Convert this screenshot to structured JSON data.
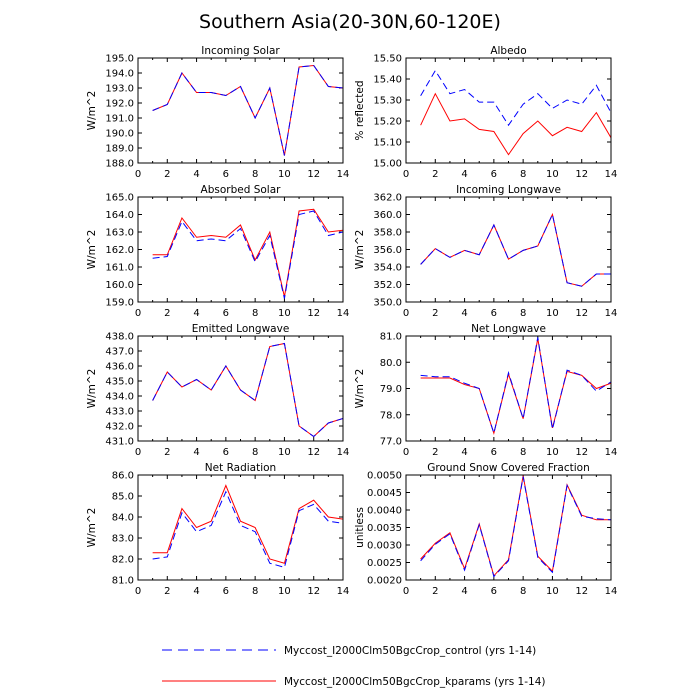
{
  "figure": {
    "title": "Southern Asia(20-30N,60-120E)"
  },
  "legend": {
    "entries": [
      {
        "label": "Myccost_I2000Clm50BgcCrop_control (yrs 1-14)",
        "color": "#0000ff",
        "dash": "dashed"
      },
      {
        "label": "Myccost_I2000Clm50BgcCrop_kparams (yrs 1-14)",
        "color": "#ff0000",
        "dash": "solid"
      }
    ]
  },
  "chart_data": [
    {
      "type": "line",
      "title": "Incoming Solar",
      "xlabel": "",
      "ylabel": "W/m^2",
      "xlim": [
        0,
        14
      ],
      "ylim": [
        188.0,
        195.0
      ],
      "xticks": [
        0,
        2,
        4,
        6,
        8,
        10,
        12,
        14
      ],
      "yticks": [
        188.0,
        189.0,
        190.0,
        191.0,
        192.0,
        193.0,
        194.0,
        195.0
      ],
      "ytick_labels": [
        "188.0",
        "189.0",
        "190.0",
        "191.0",
        "192.0",
        "193.0",
        "194.0",
        "195.0"
      ],
      "x": [
        1,
        2,
        3,
        4,
        5,
        6,
        7,
        8,
        9,
        10,
        11,
        12,
        13,
        14
      ],
      "series": [
        {
          "values": [
            191.5,
            191.9,
            194.0,
            192.7,
            192.7,
            192.5,
            193.1,
            191.0,
            193.0,
            188.5,
            194.4,
            194.5,
            193.1,
            193.0
          ]
        },
        {
          "values": [
            191.5,
            191.9,
            194.0,
            192.7,
            192.7,
            192.5,
            193.1,
            191.0,
            193.0,
            188.5,
            194.4,
            194.5,
            193.1,
            193.0
          ]
        }
      ]
    },
    {
      "type": "line",
      "title": "Albedo",
      "xlabel": "",
      "ylabel": "% reflected",
      "xlim": [
        0,
        14
      ],
      "ylim": [
        15.0,
        15.5
      ],
      "xticks": [
        0,
        2,
        4,
        6,
        8,
        10,
        12,
        14
      ],
      "yticks": [
        15.0,
        15.1,
        15.2,
        15.3,
        15.4,
        15.5
      ],
      "ytick_labels": [
        "15.00",
        "15.10",
        "15.20",
        "15.30",
        "15.40",
        "15.50"
      ],
      "x": [
        1,
        2,
        3,
        4,
        5,
        6,
        7,
        8,
        9,
        10,
        11,
        12,
        13,
        14
      ],
      "series": [
        {
          "values": [
            15.32,
            15.44,
            15.33,
            15.35,
            15.29,
            15.29,
            15.18,
            15.28,
            15.33,
            15.26,
            15.3,
            15.28,
            15.37,
            15.24
          ]
        },
        {
          "values": [
            15.18,
            15.33,
            15.2,
            15.21,
            15.16,
            15.15,
            15.04,
            15.14,
            15.2,
            15.13,
            15.17,
            15.15,
            15.24,
            15.12
          ]
        }
      ]
    },
    {
      "type": "line",
      "title": "Absorbed Solar",
      "xlabel": "",
      "ylabel": "W/m^2",
      "xlim": [
        0,
        14
      ],
      "ylim": [
        159.0,
        165.0
      ],
      "xticks": [
        0,
        2,
        4,
        6,
        8,
        10,
        12,
        14
      ],
      "yticks": [
        159.0,
        160.0,
        161.0,
        162.0,
        163.0,
        164.0,
        165.0
      ],
      "ytick_labels": [
        "159.0",
        "160.0",
        "161.0",
        "162.0",
        "163.0",
        "164.0",
        "165.0"
      ],
      "x": [
        1,
        2,
        3,
        4,
        5,
        6,
        7,
        8,
        9,
        10,
        11,
        12,
        13,
        14
      ],
      "series": [
        {
          "values": [
            161.5,
            161.6,
            163.6,
            162.5,
            162.6,
            162.5,
            163.2,
            161.3,
            162.8,
            159.2,
            164.0,
            164.2,
            162.8,
            163.0
          ]
        },
        {
          "values": [
            161.7,
            161.7,
            163.8,
            162.7,
            162.8,
            162.7,
            163.4,
            161.4,
            163.0,
            159.3,
            164.2,
            164.3,
            163.0,
            163.1
          ]
        }
      ]
    },
    {
      "type": "line",
      "title": "Incoming Longwave",
      "xlabel": "",
      "ylabel": "W/m^2",
      "xlim": [
        0,
        14
      ],
      "ylim": [
        350.0,
        362.0
      ],
      "xticks": [
        0,
        2,
        4,
        6,
        8,
        10,
        12,
        14
      ],
      "yticks": [
        350.0,
        352.0,
        354.0,
        356.0,
        358.0,
        360.0,
        362.0
      ],
      "ytick_labels": [
        "350.0",
        "352.0",
        "354.0",
        "356.0",
        "358.0",
        "360.0",
        "362.0"
      ],
      "x": [
        1,
        2,
        3,
        4,
        5,
        6,
        7,
        8,
        9,
        10,
        11,
        12,
        13,
        14
      ],
      "series": [
        {
          "values": [
            354.3,
            356.1,
            355.1,
            355.9,
            355.4,
            358.8,
            354.9,
            355.9,
            356.4,
            360.0,
            352.2,
            351.8,
            353.2,
            353.2
          ]
        },
        {
          "values": [
            354.3,
            356.1,
            355.1,
            355.9,
            355.4,
            358.8,
            354.9,
            355.9,
            356.4,
            360.0,
            352.2,
            351.8,
            353.2,
            353.2
          ]
        }
      ]
    },
    {
      "type": "line",
      "title": "Emitted Longwave",
      "xlabel": "",
      "ylabel": "W/m^2",
      "xlim": [
        0,
        14
      ],
      "ylim": [
        431.0,
        438.0
      ],
      "xticks": [
        0,
        2,
        4,
        6,
        8,
        10,
        12,
        14
      ],
      "yticks": [
        431.0,
        432.0,
        433.0,
        434.0,
        435.0,
        436.0,
        437.0,
        438.0
      ],
      "ytick_labels": [
        "431.0",
        "432.0",
        "433.0",
        "434.0",
        "435.0",
        "436.0",
        "437.0",
        "438.0"
      ],
      "x": [
        1,
        2,
        3,
        4,
        5,
        6,
        7,
        8,
        9,
        10,
        11,
        12,
        13,
        14
      ],
      "series": [
        {
          "values": [
            433.7,
            435.6,
            434.6,
            435.1,
            434.4,
            436.0,
            434.4,
            433.7,
            437.3,
            437.5,
            432.0,
            431.3,
            432.2,
            432.5
          ]
        },
        {
          "values": [
            433.7,
            435.6,
            434.6,
            435.1,
            434.4,
            436.0,
            434.4,
            433.7,
            437.3,
            437.5,
            432.0,
            431.3,
            432.2,
            432.5
          ]
        }
      ]
    },
    {
      "type": "line",
      "title": "Net Longwave",
      "xlabel": "",
      "ylabel": "W/m^2",
      "xlim": [
        0,
        14
      ],
      "ylim": [
        77.0,
        81.0
      ],
      "xticks": [
        0,
        2,
        4,
        6,
        8,
        10,
        12,
        14
      ],
      "yticks": [
        77.0,
        78.0,
        79.0,
        80.0,
        81.0
      ],
      "ytick_labels": [
        "77.0",
        "78.0",
        "79.0",
        "80.0",
        "81.0"
      ],
      "x": [
        1,
        2,
        3,
        4,
        5,
        6,
        7,
        8,
        9,
        10,
        11,
        12,
        13,
        14
      ],
      "series": [
        {
          "values": [
            79.5,
            79.45,
            79.45,
            79.2,
            79.0,
            77.3,
            79.6,
            77.85,
            80.95,
            77.45,
            79.7,
            79.5,
            78.9,
            79.25
          ]
        },
        {
          "values": [
            79.4,
            79.4,
            79.4,
            79.15,
            79.0,
            77.3,
            79.55,
            77.85,
            80.9,
            77.5,
            79.65,
            79.5,
            79.0,
            79.2
          ]
        }
      ]
    },
    {
      "type": "line",
      "title": "Net Radiation",
      "xlabel": "",
      "ylabel": "W/m^2",
      "xlim": [
        0,
        14
      ],
      "ylim": [
        81.0,
        86.0
      ],
      "xticks": [
        0,
        2,
        4,
        6,
        8,
        10,
        12,
        14
      ],
      "yticks": [
        81.0,
        82.0,
        83.0,
        84.0,
        85.0,
        86.0
      ],
      "ytick_labels": [
        "81.0",
        "82.0",
        "83.0",
        "84.0",
        "85.0",
        "86.0"
      ],
      "x": [
        1,
        2,
        3,
        4,
        5,
        6,
        7,
        8,
        9,
        10,
        11,
        12,
        13,
        14
      ],
      "series": [
        {
          "values": [
            82.0,
            82.1,
            84.2,
            83.3,
            83.6,
            85.2,
            83.6,
            83.3,
            81.8,
            81.6,
            84.3,
            84.6,
            83.8,
            83.7
          ]
        },
        {
          "values": [
            82.3,
            82.3,
            84.4,
            83.5,
            83.8,
            85.5,
            83.8,
            83.5,
            82.0,
            81.8,
            84.4,
            84.8,
            84.0,
            83.9
          ]
        }
      ]
    },
    {
      "type": "line",
      "title": "Ground Snow Covered Fraction",
      "xlabel": "",
      "ylabel": "unitless",
      "xlim": [
        0,
        14
      ],
      "ylim": [
        0.002,
        0.005
      ],
      "xticks": [
        0,
        2,
        4,
        6,
        8,
        10,
        12,
        14
      ],
      "yticks": [
        0.002,
        0.0025,
        0.003,
        0.0035,
        0.004,
        0.0045,
        0.005
      ],
      "ytick_labels": [
        "0.0020",
        "0.0025",
        "0.0030",
        "0.0035",
        "0.0040",
        "0.0045",
        "0.0050"
      ],
      "x": [
        1,
        2,
        3,
        4,
        5,
        6,
        7,
        8,
        9,
        10,
        11,
        12,
        13,
        14
      ],
      "series": [
        {
          "values": [
            0.00255,
            0.00302,
            0.00332,
            0.00228,
            0.00358,
            0.0021,
            0.00255,
            0.00495,
            0.00265,
            0.00222,
            0.0047,
            0.00382,
            0.00375,
            0.00372
          ]
        },
        {
          "values": [
            0.0026,
            0.00305,
            0.00335,
            0.00232,
            0.0036,
            0.00212,
            0.00258,
            0.00498,
            0.00268,
            0.00225,
            0.00472,
            0.00385,
            0.00372,
            0.00372
          ]
        }
      ]
    }
  ]
}
